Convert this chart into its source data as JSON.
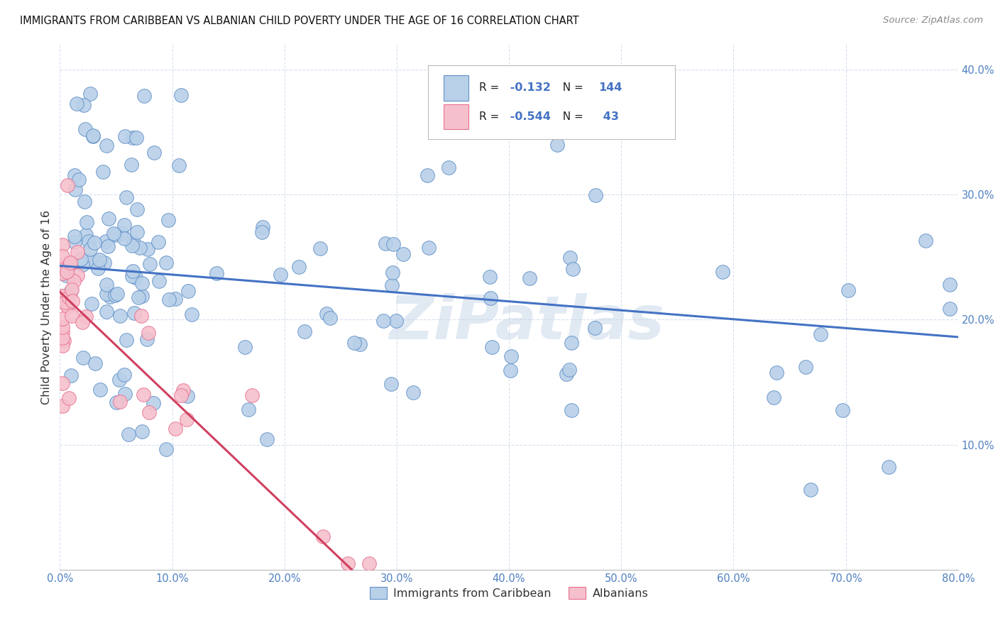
{
  "title": "IMMIGRANTS FROM CARIBBEAN VS ALBANIAN CHILD POVERTY UNDER THE AGE OF 16 CORRELATION CHART",
  "source": "Source: ZipAtlas.com",
  "ylabel": "Child Poverty Under the Age of 16",
  "xlim": [
    0.0,
    0.8
  ],
  "ylim": [
    0.0,
    0.42
  ],
  "xticks": [
    0.0,
    0.1,
    0.2,
    0.3,
    0.4,
    0.5,
    0.6,
    0.7,
    0.8
  ],
  "xticklabels": [
    "0.0%",
    "",
    "",
    "",
    "",
    "",
    "",
    "",
    "80.0%"
  ],
  "yticks": [
    0.0,
    0.1,
    0.2,
    0.3,
    0.4
  ],
  "yticklabels": [
    "",
    "10.0%",
    "20.0%",
    "30.0%",
    "40.0%"
  ],
  "blue_color": "#b8d0e8",
  "pink_color": "#f5c0cc",
  "blue_edge_color": "#6090c8",
  "pink_edge_color": "#e87090",
  "blue_line_color": "#4472c4",
  "pink_line_color": "#d04060",
  "tick_color": "#5080c0",
  "legend_blue_label": "Immigrants from Caribbean",
  "legend_pink_label": "Albanians",
  "R_blue": -0.132,
  "N_blue": 144,
  "R_pink": -0.544,
  "N_pink": 43,
  "watermark": "ZiPatlas",
  "blue_line_x0": 0.0,
  "blue_line_y0": 0.243,
  "blue_line_x1": 0.8,
  "blue_line_y1": 0.186,
  "pink_line_x0": 0.0,
  "pink_line_y0": 0.222,
  "pink_line_x1": 0.26,
  "pink_line_y1": 0.0
}
